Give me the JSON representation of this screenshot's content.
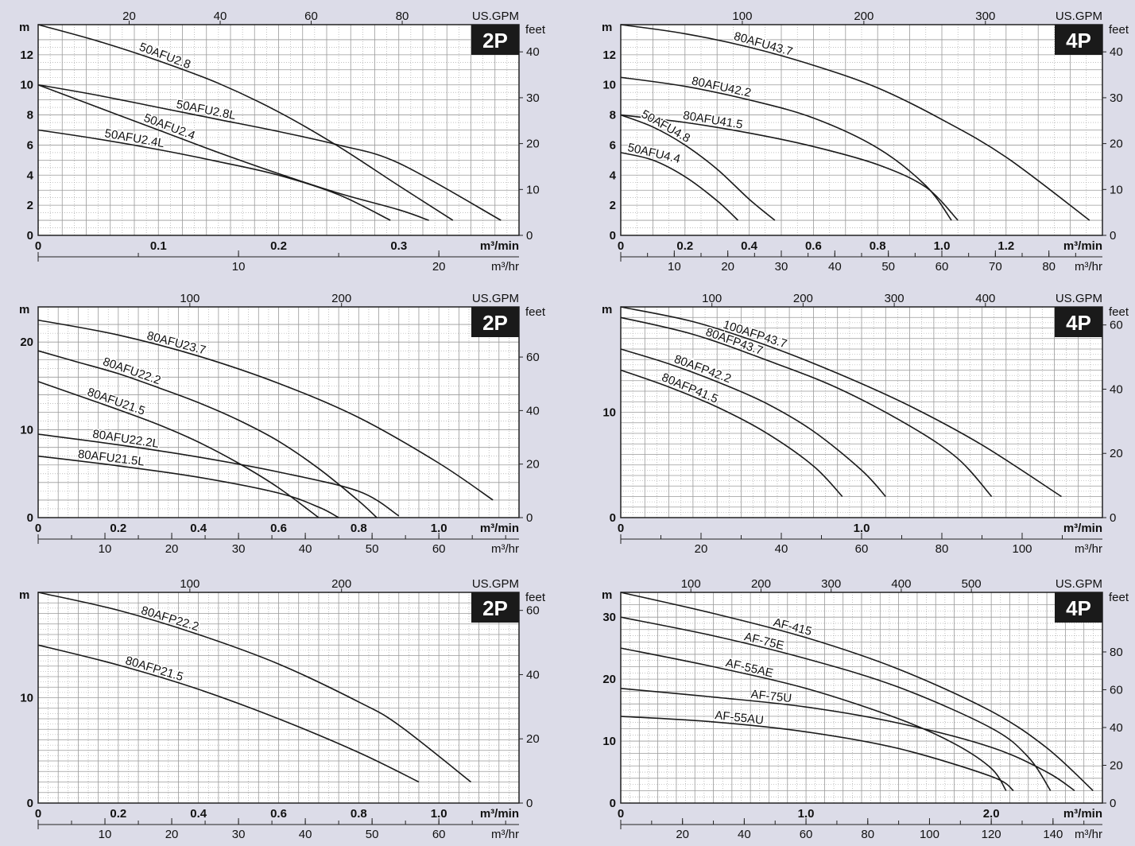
{
  "colors": {
    "background": "#dcdce8",
    "plot_background": "#ffffff",
    "grid": "#9a9a9a",
    "curve": "#1a1a1a",
    "badge": "#1a1a1a",
    "badge_text": "#ffffff"
  },
  "chart_data": [
    {
      "type": "line",
      "title": "",
      "badge": "2P",
      "left_unit": "m",
      "right_unit": "feet",
      "top_unit": "US.GPM",
      "bottom_unit": "m³/min",
      "second_bottom_unit": "m³/hr",
      "xlim": [
        0,
        0.4
      ],
      "ylim": [
        0,
        14
      ],
      "y_ticks": [
        0,
        2,
        4,
        6,
        8,
        10,
        12
      ],
      "x_ticks": [
        0,
        0.1,
        0.2,
        0.3
      ],
      "x_tick_labels": [
        "0",
        "0.1",
        "0.2",
        "0.3"
      ],
      "feet_ticks": [
        0,
        10,
        20,
        30,
        40
      ],
      "gpm_ticks": [
        20,
        40,
        60,
        80
      ],
      "m3hr_ticks": [
        10,
        20
      ],
      "grid_x_step": 0.02,
      "grid_y_step": 1,
      "series": [
        {
          "name": "50AFU2.8",
          "x": [
            0,
            0.05,
            0.1,
            0.15,
            0.2,
            0.25,
            0.3,
            0.345
          ],
          "y": [
            14,
            12.9,
            11.6,
            10.1,
            8.2,
            5.9,
            3.3,
            1
          ]
        },
        {
          "name": "50AFU2.8L",
          "x": [
            0,
            0.05,
            0.1,
            0.15,
            0.2,
            0.25,
            0.3,
            0.385
          ],
          "y": [
            10,
            9.3,
            8.5,
            7.7,
            6.9,
            6,
            4.8,
            1
          ]
        },
        {
          "name": "50AFU2.4",
          "x": [
            0,
            0.05,
            0.1,
            0.15,
            0.2,
            0.25,
            0.3,
            0.325
          ],
          "y": [
            10,
            8.5,
            7,
            5.5,
            4.1,
            2.8,
            1.7,
            1
          ]
        },
        {
          "name": "50AFU2.4L",
          "x": [
            0,
            0.05,
            0.1,
            0.15,
            0.2,
            0.25,
            0.293
          ],
          "y": [
            7,
            6.4,
            5.7,
            4.9,
            4,
            2.7,
            1
          ]
        }
      ]
    },
    {
      "type": "line",
      "title": "",
      "badge": "4P",
      "left_unit": "m",
      "right_unit": "feet",
      "top_unit": "US.GPM",
      "bottom_unit": "m³/min",
      "second_bottom_unit": "m³/hr",
      "xlim": [
        0,
        1.5
      ],
      "ylim": [
        0,
        14
      ],
      "y_ticks": [
        0,
        2,
        4,
        6,
        8,
        10,
        12
      ],
      "x_ticks": [
        0,
        0.2,
        0.4,
        0.6,
        0.8,
        1.0,
        1.2
      ],
      "x_tick_labels": [
        "0",
        "0.2",
        "0.4",
        "0.6",
        "0.8",
        "1.0",
        "1.2"
      ],
      "feet_ticks": [
        0,
        10,
        20,
        30,
        40
      ],
      "gpm_ticks": [
        100,
        200,
        300
      ],
      "m3hr_ticks": [
        10,
        20,
        30,
        40,
        50,
        60,
        70,
        80
      ],
      "grid_x_step": 0.1,
      "grid_y_step": 1,
      "series": [
        {
          "name": "80AFU43.7",
          "x": [
            0,
            0.2,
            0.4,
            0.6,
            0.8,
            1.0,
            1.2,
            1.46
          ],
          "y": [
            14,
            13.4,
            12.5,
            11.3,
            9.8,
            7.7,
            5.2,
            1
          ]
        },
        {
          "name": "80AFU42.2",
          "x": [
            0,
            0.2,
            0.4,
            0.6,
            0.8,
            0.95,
            1.03
          ],
          "y": [
            10.5,
            9.9,
            9,
            7.8,
            5.8,
            3.3,
            1
          ]
        },
        {
          "name": "80AFU41.5",
          "x": [
            0,
            0.2,
            0.4,
            0.6,
            0.8,
            0.95,
            1.05
          ],
          "y": [
            8,
            7.5,
            6.8,
            5.9,
            4.7,
            3.2,
            1
          ]
        },
        {
          "name": "50AFU4.8",
          "x": [
            0,
            0.1,
            0.2,
            0.3,
            0.4,
            0.48
          ],
          "y": [
            8,
            7.2,
            6,
            4.4,
            2.4,
            1
          ]
        },
        {
          "name": "50AFU4.4",
          "x": [
            0,
            0.1,
            0.2,
            0.3,
            0.365
          ],
          "y": [
            5.5,
            5,
            3.9,
            2.3,
            1
          ]
        }
      ]
    },
    {
      "type": "line",
      "title": "",
      "badge": "2P",
      "left_unit": "m",
      "right_unit": "feet",
      "top_unit": "US.GPM",
      "bottom_unit": "m³/min",
      "second_bottom_unit": "m³/hr",
      "xlim": [
        0,
        1.2
      ],
      "ylim": [
        0,
        24
      ],
      "y_ticks": [
        0,
        10,
        20
      ],
      "x_ticks": [
        0,
        0.2,
        0.4,
        0.6,
        0.8,
        1.0
      ],
      "x_tick_labels": [
        "0",
        "0.2",
        "0.4",
        "0.6",
        "0.8",
        "1.0"
      ],
      "feet_ticks": [
        0,
        20,
        40,
        60
      ],
      "gpm_ticks": [
        100,
        200
      ],
      "m3hr_ticks": [
        10,
        20,
        30,
        40,
        50,
        60
      ],
      "grid_x_step": 0.05,
      "grid_y_step": 2,
      "series": [
        {
          "name": "80AFU23.7",
          "x": [
            0,
            0.2,
            0.4,
            0.6,
            0.8,
            1.0,
            1.135
          ],
          "y": [
            22.5,
            20.8,
            18.4,
            15.3,
            11.4,
            6.2,
            2
          ]
        },
        {
          "name": "80AFU22.2",
          "x": [
            0,
            0.1,
            0.2,
            0.3,
            0.4,
            0.5,
            0.6,
            0.7,
            0.8,
            0.845
          ],
          "y": [
            19,
            17.7,
            16.4,
            14.8,
            13.1,
            11.1,
            8.7,
            5.6,
            1.9,
            0
          ]
        },
        {
          "name": "80AFU21.5",
          "x": [
            0,
            0.1,
            0.2,
            0.3,
            0.4,
            0.5,
            0.6,
            0.7
          ],
          "y": [
            15.5,
            13.9,
            12.3,
            10.6,
            8.6,
            6.2,
            3.4,
            0
          ]
        },
        {
          "name": "80AFU22.2L",
          "x": [
            0,
            0.2,
            0.4,
            0.6,
            0.8,
            0.9
          ],
          "y": [
            9.5,
            8.3,
            6.9,
            5.2,
            3,
            0.2
          ]
        },
        {
          "name": "80AFU21.5L",
          "x": [
            0,
            0.2,
            0.4,
            0.6,
            0.7,
            0.75
          ],
          "y": [
            7,
            5.9,
            4.6,
            2.8,
            1.2,
            0
          ]
        }
      ]
    },
    {
      "type": "line",
      "title": "",
      "badge": "4P",
      "left_unit": "m",
      "right_unit": "feet",
      "top_unit": "US.GPM",
      "bottom_unit": "m³/min",
      "second_bottom_unit": "m³/hr",
      "xlim": [
        0,
        2
      ],
      "ylim": [
        0,
        20
      ],
      "y_ticks": [
        0,
        10
      ],
      "x_ticks": [
        0,
        1.0
      ],
      "x_tick_labels": [
        "0",
        "1.0"
      ],
      "feet_ticks": [
        0,
        20,
        40,
        60
      ],
      "gpm_ticks": [
        100,
        200,
        300,
        400
      ],
      "m3hr_ticks": [
        20,
        40,
        60,
        80,
        100
      ],
      "grid_x_step": 0.1,
      "grid_y_step": 1,
      "series": [
        {
          "name": "100AFP43.7",
          "x": [
            0,
            0.3,
            0.6,
            0.9,
            1.2,
            1.5,
            1.83
          ],
          "y": [
            20,
            18.6,
            16.4,
            13.7,
            10.6,
            6.9,
            2
          ]
        },
        {
          "name": "80AFP43.7",
          "x": [
            0,
            0.3,
            0.6,
            0.9,
            1.2,
            1.4,
            1.54
          ],
          "y": [
            19,
            17.4,
            15,
            12.3,
            8.7,
            5.6,
            2
          ]
        },
        {
          "name": "80AFP42.2",
          "x": [
            0,
            0.2,
            0.4,
            0.6,
            0.8,
            1.0,
            1.1
          ],
          "y": [
            16,
            14.6,
            12.9,
            10.9,
            8.2,
            4.5,
            2
          ]
        },
        {
          "name": "80AFP41.5",
          "x": [
            0,
            0.2,
            0.4,
            0.6,
            0.8,
            0.92
          ],
          "y": [
            14,
            12.4,
            10.5,
            8.1,
            4.9,
            2
          ]
        }
      ]
    },
    {
      "type": "line",
      "title": "",
      "badge": "2P",
      "left_unit": "m",
      "right_unit": "feet",
      "top_unit": "US.GPM",
      "bottom_unit": "m³/min",
      "second_bottom_unit": "m³/hr",
      "xlim": [
        0,
        1.2
      ],
      "ylim": [
        0,
        20
      ],
      "y_ticks": [
        0,
        10
      ],
      "x_ticks": [
        0,
        0.2,
        0.4,
        0.6,
        0.8,
        1.0
      ],
      "x_tick_labels": [
        "0",
        "0.2",
        "0.4",
        "0.6",
        "0.8",
        "1.0"
      ],
      "feet_ticks": [
        0,
        20,
        40,
        60
      ],
      "gpm_ticks": [
        100,
        200
      ],
      "m3hr_ticks": [
        10,
        20,
        30,
        40,
        50,
        60
      ],
      "grid_x_step": 0.05,
      "grid_y_step": 1,
      "series": [
        {
          "name": "80AFP22.2",
          "x": [
            0,
            0.2,
            0.4,
            0.6,
            0.8,
            0.9,
            1.08
          ],
          "y": [
            20,
            18.3,
            16,
            13.2,
            9.6,
            7.4,
            2
          ]
        },
        {
          "name": "80AFP21.5",
          "x": [
            0,
            0.2,
            0.4,
            0.6,
            0.8,
            0.95
          ],
          "y": [
            15,
            13.1,
            10.8,
            8,
            4.8,
            2
          ]
        }
      ]
    },
    {
      "type": "line",
      "title": "",
      "badge": "4P",
      "left_unit": "m",
      "right_unit": "feet",
      "top_unit": "US.GPM",
      "bottom_unit": "m³/min",
      "second_bottom_unit": "m³/hr",
      "xlim": [
        0,
        2.6
      ],
      "ylim": [
        0,
        34
      ],
      "y_ticks": [
        0,
        10,
        20,
        30
      ],
      "x_ticks": [
        0,
        1.0,
        2.0
      ],
      "x_tick_labels": [
        "0",
        "1.0",
        "2.0"
      ],
      "feet_ticks": [
        0,
        20,
        40,
        60,
        80
      ],
      "gpm_ticks": [
        100,
        200,
        300,
        400,
        500
      ],
      "m3hr_ticks": [
        20,
        40,
        60,
        80,
        100,
        120,
        140
      ],
      "grid_x_step": 0.1,
      "grid_y_step": 2,
      "series": [
        {
          "name": "AF-415",
          "x": [
            0,
            0.5,
            1.0,
            1.5,
            2.0,
            2.3,
            2.55
          ],
          "y": [
            34,
            30.6,
            26.7,
            21.6,
            14.8,
            8.9,
            2
          ]
        },
        {
          "name": "AF-75E",
          "x": [
            0,
            0.5,
            1.0,
            1.5,
            2.0,
            2.2,
            2.32
          ],
          "y": [
            30,
            27,
            23.3,
            18.7,
            12.1,
            7.4,
            2
          ]
        },
        {
          "name": "AF-55AE",
          "x": [
            0,
            0.5,
            1.0,
            1.5,
            1.8,
            2.0,
            2.08
          ],
          "y": [
            25,
            22,
            18.5,
            13.6,
            9.6,
            5.6,
            2
          ]
        },
        {
          "name": "AF-75U",
          "x": [
            0,
            0.5,
            1.0,
            1.5,
            2.0,
            2.3,
            2.45
          ],
          "y": [
            18.5,
            17.1,
            15.5,
            12.9,
            9,
            5,
            2
          ]
        },
        {
          "name": "AF-55AU",
          "x": [
            0,
            0.5,
            1.0,
            1.5,
            2.0,
            2.12
          ],
          "y": [
            14,
            13.1,
            11.5,
            8.8,
            4.3,
            2
          ]
        }
      ]
    }
  ]
}
